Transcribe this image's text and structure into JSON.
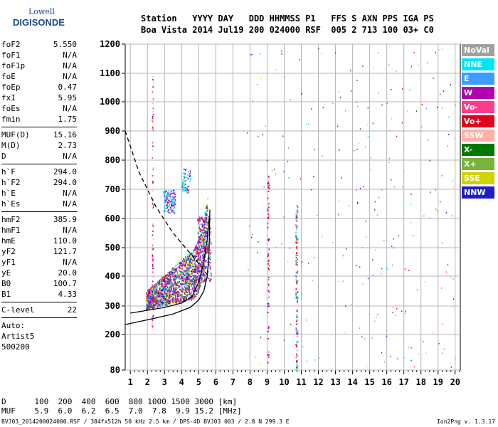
{
  "logo": {
    "line1": "Lowell",
    "line2": "DIGISONDE"
  },
  "header": {
    "line1": "Station   YYYY DAY   DDD HHMMSS P1   FFS S AXN PPS IGA PS",
    "line2": "Boa Vista 2014 Jul19 200 024000 RSF  005 2 713 100 03+ C0"
  },
  "params": {
    "group1": [
      {
        "name": "foF2",
        "value": "5.550"
      },
      {
        "name": "foF1",
        "value": "N/A"
      },
      {
        "name": "foF1p",
        "value": "N/A"
      },
      {
        "name": "foE",
        "value": "N/A"
      },
      {
        "name": "foEp",
        "value": "0.47"
      },
      {
        "name": "fxI",
        "value": "5.95"
      },
      {
        "name": "foEs",
        "value": "N/A"
      },
      {
        "name": "fmin",
        "value": "1.75"
      }
    ],
    "group2": [
      {
        "name": "MUF(D)",
        "value": "15.16"
      },
      {
        "name": "M(D)",
        "value": "2.73"
      },
      {
        "name": "D",
        "value": "N/A"
      }
    ],
    "group3": [
      {
        "name": "h`F",
        "value": "294.0"
      },
      {
        "name": "h`F2",
        "value": "294.0"
      },
      {
        "name": "h`E",
        "value": "N/A"
      },
      {
        "name": "h`Es",
        "value": "N/A"
      }
    ],
    "group4": [
      {
        "name": "hmF2",
        "value": "385.9"
      },
      {
        "name": "hmF1",
        "value": "N/A"
      },
      {
        "name": "hmE",
        "value": "110.0"
      },
      {
        "name": "yF2",
        "value": "121.7"
      },
      {
        "name": "yF1",
        "value": "N/A"
      },
      {
        "name": "yE",
        "value": "20.0"
      },
      {
        "name": "B0",
        "value": "100.7"
      },
      {
        "name": "B1",
        "value": "4.33"
      }
    ],
    "group5": [
      {
        "name": "C-level",
        "value": "22"
      }
    ],
    "auto": [
      "Auto:",
      "Artist5",
      "500200"
    ]
  },
  "legend": [
    {
      "label": "NoVal",
      "color": "#a0a0a0"
    },
    {
      "label": "NNE",
      "color": "#00e5f5"
    },
    {
      "label": "E",
      "color": "#3c9cff"
    },
    {
      "label": "W",
      "color": "#b000b0"
    },
    {
      "label": "Vo-",
      "color": "#ff3c8c"
    },
    {
      "label": "Vo+",
      "color": "#e0001e"
    },
    {
      "label": "SSW",
      "color": "#ffb0a8"
    },
    {
      "label": "X-",
      "color": "#007800"
    },
    {
      "label": "X+",
      "color": "#78b43c"
    },
    {
      "label": "SSE",
      "color": "#d2d200"
    },
    {
      "label": "NNW",
      "color": "#1e1ec8"
    }
  ],
  "bottom": {
    "line1": "D      100  200  400  600  800 1000 1500 3000 [km]",
    "line2": "MUF    5.9  6.0  6.2  6.5  7.0  7.8  9.9 15.2 [MHz]"
  },
  "footer": {
    "left": "BVJ03_2014200024000.RSF / 384fx512h 50 kHz 2.5 km / DPS-4D BVJ03 003 / 2.8 N 299.3 E",
    "right": "Ion2Png v. 1.3.17"
  },
  "chart_data": {
    "type": "scatter",
    "xlim": [
      0.7,
      20.3
    ],
    "ylim": [
      80,
      1200
    ],
    "x_ticks": [
      "1",
      "2",
      "3",
      "4",
      "5",
      "6",
      "7",
      "8",
      "9",
      "10",
      "11",
      "12",
      "13",
      "14",
      "15",
      "16",
      "17",
      "18",
      "19",
      "20"
    ],
    "y_ticks": [
      "80",
      "200",
      "300",
      "400",
      "500",
      "600",
      "700",
      "800",
      "900",
      "1000",
      "1100",
      "1200"
    ],
    "grid": true,
    "y_scale": "nonlinear",
    "series": [
      {
        "color": "#000000",
        "style": "solid",
        "points": [
          [
            0.7,
            235
          ],
          [
            1.5,
            245
          ],
          [
            2.5,
            258
          ],
          [
            3.5,
            272
          ],
          [
            4.5,
            295
          ],
          [
            5.0,
            320
          ],
          [
            5.3,
            350
          ],
          [
            5.5,
            400
          ],
          [
            5.6,
            480
          ],
          [
            5.65,
            630
          ]
        ]
      },
      {
        "color": "#000000",
        "style": "dashed",
        "points": [
          [
            0.7,
            900
          ],
          [
            1.5,
            760
          ],
          [
            2.5,
            640
          ],
          [
            3.5,
            550
          ],
          [
            4.5,
            480
          ],
          [
            5.2,
            430
          ],
          [
            5.5,
            405
          ]
        ]
      },
      {
        "color": "#000000",
        "style": "solid",
        "points": [
          [
            1.0,
            275
          ],
          [
            2.0,
            285
          ],
          [
            3.0,
            295
          ],
          [
            4.0,
            310
          ],
          [
            4.6,
            330
          ],
          [
            5.0,
            380
          ],
          [
            5.3,
            450
          ],
          [
            5.5,
            530
          ],
          [
            5.6,
            600
          ]
        ]
      }
    ]
  }
}
